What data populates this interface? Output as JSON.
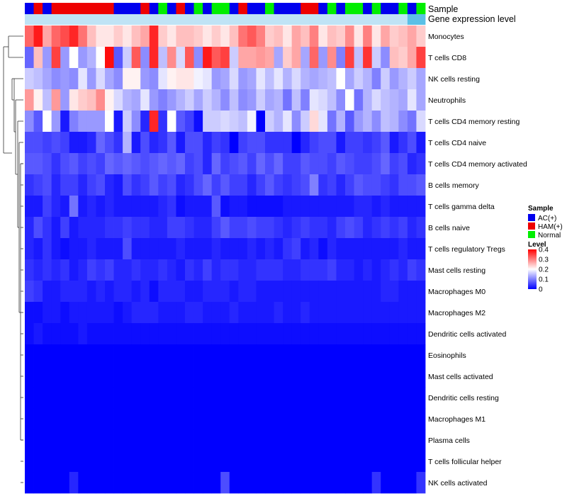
{
  "chart_data": {
    "type": "heatmap",
    "annotations": [
      {
        "name": "Sample",
        "values": [
          "AC(+)",
          "HAM(+)",
          "AC(+)",
          "HAM(+)",
          "HAM(+)",
          "HAM(+)",
          "HAM(+)",
          "HAM(+)",
          "HAM(+)",
          "HAM(+)",
          "AC(+)",
          "AC(+)",
          "AC(+)",
          "HAM(+)",
          "AC(+)",
          "Normal",
          "AC(+)",
          "HAM(+)",
          "AC(+)",
          "Normal",
          "AC(+)",
          "Normal",
          "Normal",
          "AC(+)",
          "HAM(+)",
          "AC(+)",
          "AC(+)",
          "Normal",
          "AC(+)",
          "AC(+)",
          "AC(+)",
          "HAM(+)",
          "HAM(+)",
          "AC(+)",
          "Normal",
          "AC(+)",
          "Normal",
          "Normal",
          "AC(+)",
          "Normal",
          "AC(+)",
          "AC(+)",
          "Normal",
          "AC(+)",
          "Normal"
        ]
      },
      {
        "name": "Gene expression level",
        "values": [
          "low",
          "low",
          "low",
          "low",
          "low",
          "low",
          "low",
          "low",
          "low",
          "low",
          "low",
          "low",
          "low",
          "low",
          "low",
          "low",
          "low",
          "low",
          "low",
          "low",
          "low",
          "low",
          "low",
          "low",
          "low",
          "low",
          "low",
          "low",
          "low",
          "low",
          "low",
          "low",
          "low",
          "low",
          "low",
          "low",
          "low",
          "low",
          "low",
          "low",
          "low",
          "low",
          "low",
          "high",
          "high"
        ]
      }
    ],
    "sample_colors": {
      "AC(+)": "#0000ee",
      "HAM(+)": "#ee0000",
      "Normal": "#00ee00"
    },
    "expression_colors": {
      "low": "#bfe3f5",
      "high": "#5bc0e6"
    },
    "rows": [
      "Monocytes",
      "T cells CD8",
      "NK cells resting",
      "Neutrophils",
      "T cells CD4 memory resting",
      "T cells CD4 naive",
      "T cells CD4 memory activated",
      "B cells memory",
      "T cells gamma delta",
      "B cells naive",
      "T cells regulatory  Tregs",
      "Mast cells resting",
      "Macrophages M0",
      "Macrophages M2",
      "Dendritic cells activated",
      "Eosinophils",
      "Mast cells activated",
      "Dendritic cells resting",
      "Macrophages M1",
      "Plasma cells",
      "T cells follicular helper",
      "NK cells activated"
    ],
    "values": [
      [
        0.32,
        0.38,
        0.27,
        0.32,
        0.34,
        0.37,
        0.31,
        0.25,
        0.22,
        0.22,
        0.24,
        0.22,
        0.25,
        0.27,
        0.37,
        0.24,
        0.22,
        0.25,
        0.25,
        0.24,
        0.22,
        0.24,
        0.22,
        0.25,
        0.31,
        0.33,
        0.3,
        0.24,
        0.25,
        0.22,
        0.27,
        0.25,
        0.3,
        0.22,
        0.25,
        0.24,
        0.29,
        0.22,
        0.3,
        0.22,
        0.27,
        0.24,
        0.25,
        0.27,
        0.24
      ],
      [
        0.08,
        0.25,
        0.12,
        0.35,
        0.12,
        0.2,
        0.12,
        0.14,
        0.2,
        0.39,
        0.07,
        0.16,
        0.33,
        0.11,
        0.37,
        0.15,
        0.29,
        0.17,
        0.33,
        0.11,
        0.38,
        0.33,
        0.35,
        0.16,
        0.27,
        0.27,
        0.28,
        0.27,
        0.13,
        0.24,
        0.27,
        0.13,
        0.32,
        0.12,
        0.29,
        0.1,
        0.35,
        0.15,
        0.36,
        0.16,
        0.11,
        0.25,
        0.24,
        0.27,
        0.35
      ],
      [
        0.16,
        0.15,
        0.13,
        0.11,
        0.12,
        0.11,
        0.18,
        0.12,
        0.17,
        0.13,
        0.11,
        0.21,
        0.21,
        0.12,
        0.11,
        0.18,
        0.21,
        0.22,
        0.22,
        0.19,
        0.18,
        0.12,
        0.13,
        0.17,
        0.12,
        0.13,
        0.18,
        0.15,
        0.18,
        0.14,
        0.17,
        0.14,
        0.13,
        0.14,
        0.15,
        0.2,
        0.13,
        0.16,
        0.14,
        0.1,
        0.16,
        0.12,
        0.14,
        0.16,
        0.13
      ],
      [
        0.28,
        0.21,
        0.15,
        0.28,
        0.12,
        0.22,
        0.24,
        0.25,
        0.29,
        0.21,
        0.17,
        0.14,
        0.13,
        0.18,
        0.12,
        0.1,
        0.12,
        0.14,
        0.16,
        0.13,
        0.16,
        0.14,
        0.11,
        0.15,
        0.11,
        0.12,
        0.16,
        0.13,
        0.14,
        0.09,
        0.15,
        0.1,
        0.18,
        0.17,
        0.15,
        0.11,
        0.2,
        0.09,
        0.14,
        0.17,
        0.15,
        0.14,
        0.13,
        0.18,
        0.13
      ],
      [
        0.11,
        0.07,
        0.2,
        0.12,
        0.02,
        0.1,
        0.12,
        0.12,
        0.12,
        0.2,
        0.02,
        0.16,
        0.11,
        0.03,
        0.37,
        0.04,
        0.2,
        0.07,
        0.05,
        0.01,
        0.16,
        0.16,
        0.17,
        0.16,
        0.15,
        0.19,
        0.0,
        0.16,
        0.14,
        0.18,
        0.11,
        0.16,
        0.23,
        0.18,
        0.09,
        0.14,
        0.07,
        0.12,
        0.14,
        0.11,
        0.15,
        0.14,
        0.11,
        0.09,
        0.17
      ],
      [
        0.06,
        0.06,
        0.05,
        0.06,
        0.05,
        0.02,
        0.02,
        0.03,
        0.08,
        0.06,
        0.04,
        0.14,
        0.02,
        0.06,
        0.03,
        0.04,
        0.07,
        0.02,
        0.06,
        0.06,
        0.03,
        0.05,
        0.04,
        0.0,
        0.05,
        0.06,
        0.06,
        0.04,
        0.04,
        0.04,
        0.0,
        0.03,
        0.05,
        0.06,
        0.06,
        0.02,
        0.05,
        0.05,
        0.04,
        0.05,
        0.07,
        0.02,
        0.04,
        0.06,
        0.02
      ],
      [
        0.07,
        0.07,
        0.06,
        0.04,
        0.06,
        0.07,
        0.05,
        0.06,
        0.05,
        0.08,
        0.07,
        0.08,
        0.07,
        0.06,
        0.07,
        0.08,
        0.07,
        0.08,
        0.05,
        0.06,
        0.03,
        0.08,
        0.05,
        0.06,
        0.07,
        0.05,
        0.08,
        0.06,
        0.08,
        0.05,
        0.05,
        0.07,
        0.06,
        0.06,
        0.05,
        0.07,
        0.06,
        0.05,
        0.05,
        0.06,
        0.08,
        0.05,
        0.06,
        0.03,
        0.04
      ],
      [
        0.04,
        0.05,
        0.06,
        0.03,
        0.05,
        0.05,
        0.03,
        0.05,
        0.06,
        0.03,
        0.02,
        0.06,
        0.04,
        0.05,
        0.07,
        0.05,
        0.06,
        0.03,
        0.04,
        0.06,
        0.08,
        0.05,
        0.07,
        0.05,
        0.05,
        0.03,
        0.05,
        0.07,
        0.05,
        0.04,
        0.05,
        0.06,
        0.1,
        0.04,
        0.05,
        0.03,
        0.05,
        0.07,
        0.06,
        0.06,
        0.05,
        0.04,
        0.06,
        0.06,
        0.07
      ],
      [
        0.02,
        0.02,
        0.05,
        0.03,
        0.02,
        0.09,
        0.02,
        0.03,
        0.02,
        0.03,
        0.02,
        0.02,
        0.02,
        0.02,
        0.02,
        0.03,
        0.04,
        0.01,
        0.02,
        0.02,
        0.02,
        0.07,
        0.01,
        0.02,
        0.02,
        0.01,
        0.01,
        0.01,
        0.01,
        0.02,
        0.02,
        0.02,
        0.02,
        0.02,
        0.02,
        0.02,
        0.02,
        0.03,
        0.03,
        0.02,
        0.03,
        0.02,
        0.02,
        0.02,
        0.02
      ],
      [
        0.03,
        0.06,
        0.04,
        0.02,
        0.05,
        0.02,
        0.03,
        0.03,
        0.03,
        0.04,
        0.04,
        0.05,
        0.04,
        0.04,
        0.03,
        0.03,
        0.05,
        0.05,
        0.04,
        0.03,
        0.03,
        0.05,
        0.07,
        0.05,
        0.05,
        0.06,
        0.05,
        0.05,
        0.04,
        0.03,
        0.04,
        0.05,
        0.04,
        0.04,
        0.03,
        0.05,
        0.06,
        0.05,
        0.03,
        0.04,
        0.05,
        0.04,
        0.05,
        0.03,
        0.04
      ],
      [
        0.03,
        0.02,
        0.04,
        0.02,
        0.01,
        0.02,
        0.02,
        0.03,
        0.02,
        0.02,
        0.02,
        0.06,
        0.02,
        0.02,
        0.02,
        0.02,
        0.02,
        0.03,
        0.02,
        0.02,
        0.02,
        0.03,
        0.02,
        0.02,
        0.02,
        0.03,
        0.02,
        0.03,
        0.02,
        0.04,
        0.05,
        0.02,
        0.03,
        0.01,
        0.03,
        0.02,
        0.02,
        0.02,
        0.02,
        0.02,
        0.02,
        0.02,
        0.03,
        0.02,
        0.02
      ],
      [
        0.04,
        0.03,
        0.04,
        0.03,
        0.04,
        0.02,
        0.03,
        0.05,
        0.04,
        0.05,
        0.03,
        0.03,
        0.04,
        0.03,
        0.03,
        0.04,
        0.03,
        0.02,
        0.04,
        0.03,
        0.05,
        0.03,
        0.04,
        0.04,
        0.03,
        0.03,
        0.04,
        0.04,
        0.04,
        0.03,
        0.03,
        0.04,
        0.04,
        0.04,
        0.05,
        0.03,
        0.03,
        0.02,
        0.03,
        0.02,
        0.03,
        0.04,
        0.03,
        0.05,
        0.04
      ],
      [
        0.05,
        0.04,
        0.02,
        0.02,
        0.03,
        0.03,
        0.03,
        0.02,
        0.03,
        0.02,
        0.03,
        0.03,
        0.02,
        0.03,
        0.01,
        0.03,
        0.03,
        0.03,
        0.02,
        0.02,
        0.03,
        0.03,
        0.03,
        0.02,
        0.03,
        0.03,
        0.02,
        0.02,
        0.02,
        0.02,
        0.02,
        0.02,
        0.02,
        0.02,
        0.02,
        0.02,
        0.02,
        0.02,
        0.02,
        0.02,
        0.03,
        0.03,
        0.02,
        0.02,
        0.02
      ],
      [
        0.01,
        0.01,
        0.02,
        0.02,
        0.01,
        0.02,
        0.02,
        0.02,
        0.02,
        0.02,
        0.01,
        0.02,
        0.03,
        0.03,
        0.03,
        0.02,
        0.02,
        0.02,
        0.03,
        0.03,
        0.02,
        0.02,
        0.02,
        0.03,
        0.02,
        0.02,
        0.02,
        0.02,
        0.03,
        0.02,
        0.02,
        0.03,
        0.02,
        0.02,
        0.02,
        0.02,
        0.02,
        0.02,
        0.02,
        0.02,
        0.02,
        0.02,
        0.02,
        0.02,
        0.02
      ],
      [
        0.01,
        0.02,
        0.01,
        0.01,
        0.01,
        0.01,
        0.02,
        0.01,
        0.01,
        0.01,
        0.01,
        0.01,
        0.01,
        0.01,
        0.01,
        0.01,
        0.01,
        0.01,
        0.01,
        0.01,
        0.01,
        0.01,
        0.01,
        0.01,
        0.01,
        0.01,
        0.01,
        0.01,
        0.01,
        0.01,
        0.01,
        0.01,
        0.01,
        0.01,
        0.01,
        0.01,
        0.01,
        0.01,
        0.01,
        0.01,
        0.01,
        0.01,
        0.01,
        0.01,
        0.01
      ],
      [
        0.0,
        0.0,
        0.0,
        0.0,
        0.0,
        0.0,
        0.0,
        0.0,
        0.0,
        0.0,
        0.0,
        0.0,
        0.0,
        0.0,
        0.0,
        0.0,
        0.0,
        0.0,
        0.0,
        0.0,
        0.0,
        0.0,
        0.0,
        0.0,
        0.0,
        0.0,
        0.0,
        0.0,
        0.0,
        0.0,
        0.0,
        0.0,
        0.0,
        0.0,
        0.0,
        0.0,
        0.0,
        0.0,
        0.0,
        0.0,
        0.0,
        0.0,
        0.0,
        0.0,
        0.0
      ],
      [
        0.0,
        0.0,
        0.0,
        0.0,
        0.0,
        0.0,
        0.0,
        0.0,
        0.0,
        0.0,
        0.0,
        0.0,
        0.0,
        0.0,
        0.0,
        0.0,
        0.0,
        0.0,
        0.0,
        0.0,
        0.0,
        0.0,
        0.0,
        0.0,
        0.0,
        0.0,
        0.0,
        0.0,
        0.0,
        0.0,
        0.0,
        0.0,
        0.0,
        0.0,
        0.0,
        0.0,
        0.0,
        0.0,
        0.0,
        0.0,
        0.0,
        0.0,
        0.0,
        0.0,
        0.0
      ],
      [
        0.0,
        0.0,
        0.0,
        0.0,
        0.0,
        0.0,
        0.0,
        0.0,
        0.0,
        0.0,
        0.0,
        0.0,
        0.0,
        0.0,
        0.0,
        0.0,
        0.0,
        0.0,
        0.0,
        0.0,
        0.0,
        0.0,
        0.0,
        0.0,
        0.0,
        0.0,
        0.0,
        0.0,
        0.0,
        0.0,
        0.0,
        0.0,
        0.0,
        0.0,
        0.0,
        0.0,
        0.0,
        0.0,
        0.0,
        0.0,
        0.0,
        0.0,
        0.0,
        0.0,
        0.0
      ],
      [
        0.0,
        0.0,
        0.0,
        0.0,
        0.0,
        0.0,
        0.0,
        0.0,
        0.0,
        0.0,
        0.0,
        0.0,
        0.0,
        0.0,
        0.0,
        0.0,
        0.0,
        0.0,
        0.0,
        0.0,
        0.0,
        0.0,
        0.0,
        0.0,
        0.0,
        0.0,
        0.0,
        0.0,
        0.0,
        0.0,
        0.0,
        0.0,
        0.0,
        0.0,
        0.0,
        0.0,
        0.0,
        0.0,
        0.0,
        0.0,
        0.0,
        0.0,
        0.0,
        0.0,
        0.0
      ],
      [
        0.0,
        0.0,
        0.0,
        0.0,
        0.0,
        0.0,
        0.0,
        0.0,
        0.0,
        0.0,
        0.0,
        0.0,
        0.0,
        0.0,
        0.0,
        0.0,
        0.0,
        0.0,
        0.0,
        0.0,
        0.0,
        0.0,
        0.0,
        0.0,
        0.0,
        0.0,
        0.0,
        0.0,
        0.0,
        0.0,
        0.0,
        0.0,
        0.0,
        0.0,
        0.0,
        0.0,
        0.0,
        0.0,
        0.0,
        0.0,
        0.0,
        0.0,
        0.0,
        0.0,
        0.0
      ],
      [
        0.0,
        0.0,
        0.0,
        0.0,
        0.0,
        0.0,
        0.0,
        0.0,
        0.0,
        0.0,
        0.0,
        0.0,
        0.0,
        0.0,
        0.0,
        0.0,
        0.0,
        0.0,
        0.0,
        0.0,
        0.0,
        0.0,
        0.0,
        0.0,
        0.0,
        0.0,
        0.0,
        0.0,
        0.0,
        0.0,
        0.0,
        0.0,
        0.0,
        0.0,
        0.0,
        0.0,
        0.0,
        0.0,
        0.0,
        0.0,
        0.0,
        0.0,
        0.0,
        0.0,
        0.0
      ],
      [
        0.0,
        0.0,
        0.0,
        0.0,
        0.0,
        0.03,
        0.0,
        0.0,
        0.0,
        0.0,
        0.0,
        0.0,
        0.0,
        0.0,
        0.0,
        0.0,
        0.0,
        0.0,
        0.0,
        0.0,
        0.0,
        0.0,
        0.06,
        0.0,
        0.0,
        0.0,
        0.0,
        0.0,
        0.0,
        0.0,
        0.0,
        0.0,
        0.0,
        0.0,
        0.0,
        0.0,
        0.0,
        0.0,
        0.0,
        0.04,
        0.0,
        0.0,
        0.0,
        0.0,
        0.04
      ]
    ],
    "color_scale": {
      "min": 0,
      "mid": 0.2,
      "max": 0.4,
      "low_color": "#0000ff",
      "mid_color": "#ffffff",
      "high_color": "#ff0000"
    },
    "legend": {
      "sample_title": "Sample",
      "sample_entries": [
        "AC(+)",
        "HAM(+)",
        "Normal"
      ],
      "level_title": "Level",
      "level_ticks": [
        "0.4",
        "0.3",
        "0.2",
        "0.1",
        "0"
      ]
    },
    "row_dendrogram": true
  }
}
